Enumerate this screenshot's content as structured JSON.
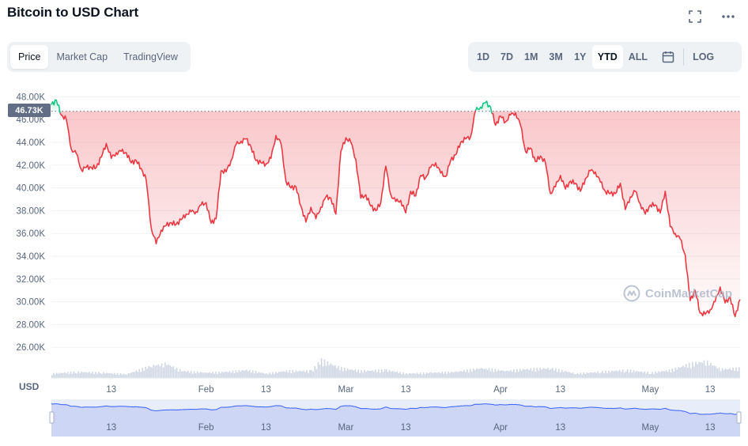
{
  "title": "Bitcoin to USD Chart",
  "header_icons": [
    "fullscreen-icon",
    "more-icon"
  ],
  "tabs_left": [
    {
      "label": "Price",
      "active": true
    },
    {
      "label": "Market Cap",
      "active": false
    },
    {
      "label": "TradingView",
      "active": false
    }
  ],
  "tabs_right": [
    {
      "label": "1D",
      "active": false
    },
    {
      "label": "7D",
      "active": false
    },
    {
      "label": "1M",
      "active": false
    },
    {
      "label": "3M",
      "active": false
    },
    {
      "label": "1Y",
      "active": false
    },
    {
      "label": "YTD",
      "active": true
    },
    {
      "label": "ALL",
      "active": false
    }
  ],
  "log_label": "LOG",
  "currency_label": "USD",
  "current_price_label": "46.73K",
  "watermark": "CoinMarketCap",
  "colors": {
    "up": "#16c784",
    "down": "#ea3943",
    "accent": "#3861fb"
  },
  "chart_data": {
    "type": "line",
    "title": "Bitcoin to USD Chart",
    "x_start": "2022-01-01",
    "x_end": "2022-05-19",
    "ylim": [
      24000,
      49000
    ],
    "yticks": [
      26000,
      28000,
      30000,
      32000,
      34000,
      36000,
      38000,
      40000,
      42000,
      44000,
      46000,
      48000
    ],
    "ytick_labels": [
      "26.00K",
      "28.00K",
      "30.00K",
      "32.00K",
      "34.00K",
      "36.00K",
      "38.00K",
      "40.00K",
      "42.00K",
      "44.00K",
      "46.00K",
      "48.00K"
    ],
    "xticks": [
      {
        "date": "2022-01-13",
        "label": "13"
      },
      {
        "date": "2022-02-01",
        "label": "Feb"
      },
      {
        "date": "2022-02-13",
        "label": "13"
      },
      {
        "date": "2022-03-01",
        "label": "Mar"
      },
      {
        "date": "2022-03-13",
        "label": "13"
      },
      {
        "date": "2022-04-01",
        "label": "Apr"
      },
      {
        "date": "2022-04-13",
        "label": "13"
      },
      {
        "date": "2022-05-01",
        "label": "May"
      },
      {
        "date": "2022-05-13",
        "label": "13"
      }
    ],
    "baseline": 46730,
    "series": [
      {
        "values": [
          [
            "2022-01-01",
            47300
          ],
          [
            "2022-01-02",
            47700
          ],
          [
            "2022-01-03",
            46400
          ],
          [
            "2022-01-04",
            46000
          ],
          [
            "2022-01-05",
            43400
          ],
          [
            "2022-01-06",
            43000
          ],
          [
            "2022-01-07",
            41600
          ],
          [
            "2022-01-08",
            41800
          ],
          [
            "2022-01-09",
            41800
          ],
          [
            "2022-01-10",
            41800
          ],
          [
            "2022-01-11",
            42700
          ],
          [
            "2022-01-12",
            43900
          ],
          [
            "2022-01-13",
            42600
          ],
          [
            "2022-01-14",
            43100
          ],
          [
            "2022-01-15",
            43200
          ],
          [
            "2022-01-16",
            43100
          ],
          [
            "2022-01-17",
            42200
          ],
          [
            "2022-01-18",
            42400
          ],
          [
            "2022-01-19",
            41700
          ],
          [
            "2022-01-20",
            40700
          ],
          [
            "2022-01-21",
            36500
          ],
          [
            "2022-01-22",
            35100
          ],
          [
            "2022-01-23",
            36300
          ],
          [
            "2022-01-24",
            36700
          ],
          [
            "2022-01-25",
            36950
          ],
          [
            "2022-01-26",
            36800
          ],
          [
            "2022-01-27",
            37200
          ],
          [
            "2022-01-28",
            37700
          ],
          [
            "2022-01-29",
            37900
          ],
          [
            "2022-01-30",
            37900
          ],
          [
            "2022-01-31",
            38500
          ],
          [
            "2022-02-01",
            38700
          ],
          [
            "2022-02-02",
            36900
          ],
          [
            "2022-02-03",
            37300
          ],
          [
            "2022-02-04",
            41500
          ],
          [
            "2022-02-05",
            41400
          ],
          [
            "2022-02-06",
            42400
          ],
          [
            "2022-02-07",
            43800
          ],
          [
            "2022-02-08",
            44100
          ],
          [
            "2022-02-09",
            44300
          ],
          [
            "2022-02-10",
            43600
          ],
          [
            "2022-02-11",
            42400
          ],
          [
            "2022-02-12",
            42200
          ],
          [
            "2022-02-13",
            42100
          ],
          [
            "2022-02-14",
            42600
          ],
          [
            "2022-02-15",
            44600
          ],
          [
            "2022-02-16",
            43900
          ],
          [
            "2022-02-17",
            40600
          ],
          [
            "2022-02-18",
            40000
          ],
          [
            "2022-02-19",
            40100
          ],
          [
            "2022-02-20",
            38400
          ],
          [
            "2022-02-21",
            37000
          ],
          [
            "2022-02-22",
            38300
          ],
          [
            "2022-02-23",
            37300
          ],
          [
            "2022-02-24",
            38300
          ],
          [
            "2022-02-25",
            39200
          ],
          [
            "2022-02-26",
            39100
          ],
          [
            "2022-02-27",
            37700
          ],
          [
            "2022-02-28",
            43200
          ],
          [
            "2022-03-01",
            44400
          ],
          [
            "2022-03-02",
            44000
          ],
          [
            "2022-03-03",
            42500
          ],
          [
            "2022-03-04",
            39100
          ],
          [
            "2022-03-05",
            39400
          ],
          [
            "2022-03-06",
            38400
          ],
          [
            "2022-03-07",
            38000
          ],
          [
            "2022-03-08",
            38700
          ],
          [
            "2022-03-09",
            41900
          ],
          [
            "2022-03-10",
            39400
          ],
          [
            "2022-03-11",
            38800
          ],
          [
            "2022-03-12",
            38900
          ],
          [
            "2022-03-13",
            37800
          ],
          [
            "2022-03-14",
            39700
          ],
          [
            "2022-03-15",
            39300
          ],
          [
            "2022-03-16",
            41100
          ],
          [
            "2022-03-17",
            40900
          ],
          [
            "2022-03-18",
            41800
          ],
          [
            "2022-03-19",
            42200
          ],
          [
            "2022-03-20",
            41300
          ],
          [
            "2022-03-21",
            41000
          ],
          [
            "2022-03-22",
            42400
          ],
          [
            "2022-03-23",
            42900
          ],
          [
            "2022-03-24",
            44000
          ],
          [
            "2022-03-25",
            44300
          ],
          [
            "2022-03-26",
            44500
          ],
          [
            "2022-03-27",
            46800
          ],
          [
            "2022-03-28",
            47100
          ],
          [
            "2022-03-29",
            47500
          ],
          [
            "2022-03-30",
            47100
          ],
          [
            "2022-03-31",
            45500
          ],
          [
            "2022-04-01",
            46300
          ],
          [
            "2022-04-02",
            45800
          ],
          [
            "2022-04-03",
            46400
          ],
          [
            "2022-04-04",
            46600
          ],
          [
            "2022-04-05",
            45500
          ],
          [
            "2022-04-06",
            43200
          ],
          [
            "2022-04-07",
            43500
          ],
          [
            "2022-04-08",
            42300
          ],
          [
            "2022-04-09",
            42800
          ],
          [
            "2022-04-10",
            42200
          ],
          [
            "2022-04-11",
            39500
          ],
          [
            "2022-04-12",
            40100
          ],
          [
            "2022-04-13",
            41100
          ],
          [
            "2022-04-14",
            39900
          ],
          [
            "2022-04-15",
            40600
          ],
          [
            "2022-04-16",
            40400
          ],
          [
            "2022-04-17",
            39700
          ],
          [
            "2022-04-18",
            40800
          ],
          [
            "2022-04-19",
            41500
          ],
          [
            "2022-04-20",
            41400
          ],
          [
            "2022-04-21",
            40500
          ],
          [
            "2022-04-22",
            39700
          ],
          [
            "2022-04-23",
            39500
          ],
          [
            "2022-04-24",
            39500
          ],
          [
            "2022-04-25",
            40400
          ],
          [
            "2022-04-26",
            38100
          ],
          [
            "2022-04-27",
            39200
          ],
          [
            "2022-04-28",
            39700
          ],
          [
            "2022-04-29",
            38600
          ],
          [
            "2022-04-30",
            37700
          ],
          [
            "2022-05-01",
            38500
          ],
          [
            "2022-05-02",
            38500
          ],
          [
            "2022-05-03",
            37800
          ],
          [
            "2022-05-04",
            39700
          ],
          [
            "2022-05-05",
            36600
          ],
          [
            "2022-05-06",
            36000
          ],
          [
            "2022-05-07",
            35500
          ],
          [
            "2022-05-08",
            34100
          ],
          [
            "2022-05-09",
            30100
          ],
          [
            "2022-05-10",
            31000
          ],
          [
            "2022-05-11",
            29000
          ],
          [
            "2022-05-12",
            28900
          ],
          [
            "2022-05-13",
            29300
          ],
          [
            "2022-05-14",
            30000
          ],
          [
            "2022-05-15",
            31300
          ],
          [
            "2022-05-16",
            29900
          ],
          [
            "2022-05-17",
            30400
          ],
          [
            "2022-05-18",
            28700
          ],
          [
            "2022-05-19",
            30200
          ]
        ]
      }
    ],
    "volume": [
      [
        "2022-01-01",
        0.25
      ],
      [
        "2022-01-06",
        0.35
      ],
      [
        "2022-01-11",
        0.3
      ],
      [
        "2022-01-16",
        0.22
      ],
      [
        "2022-01-21",
        0.7
      ],
      [
        "2022-01-24",
        0.8
      ],
      [
        "2022-01-27",
        0.4
      ],
      [
        "2022-02-01",
        0.3
      ],
      [
        "2022-02-05",
        0.35
      ],
      [
        "2022-02-09",
        0.45
      ],
      [
        "2022-02-13",
        0.25
      ],
      [
        "2022-02-17",
        0.4
      ],
      [
        "2022-02-22",
        0.4
      ],
      [
        "2022-02-24",
        1.0
      ],
      [
        "2022-02-28",
        0.55
      ],
      [
        "2022-03-04",
        0.4
      ],
      [
        "2022-03-09",
        0.45
      ],
      [
        "2022-03-13",
        0.25
      ],
      [
        "2022-03-18",
        0.3
      ],
      [
        "2022-03-23",
        0.35
      ],
      [
        "2022-03-28",
        0.55
      ],
      [
        "2022-04-02",
        0.4
      ],
      [
        "2022-04-06",
        0.5
      ],
      [
        "2022-04-11",
        0.55
      ],
      [
        "2022-04-16",
        0.25
      ],
      [
        "2022-04-21",
        0.35
      ],
      [
        "2022-04-26",
        0.45
      ],
      [
        "2022-05-01",
        0.3
      ],
      [
        "2022-05-05",
        0.45
      ],
      [
        "2022-05-09",
        0.8
      ],
      [
        "2022-05-12",
        0.95
      ],
      [
        "2022-05-15",
        0.5
      ],
      [
        "2022-05-19",
        0.55
      ]
    ]
  }
}
